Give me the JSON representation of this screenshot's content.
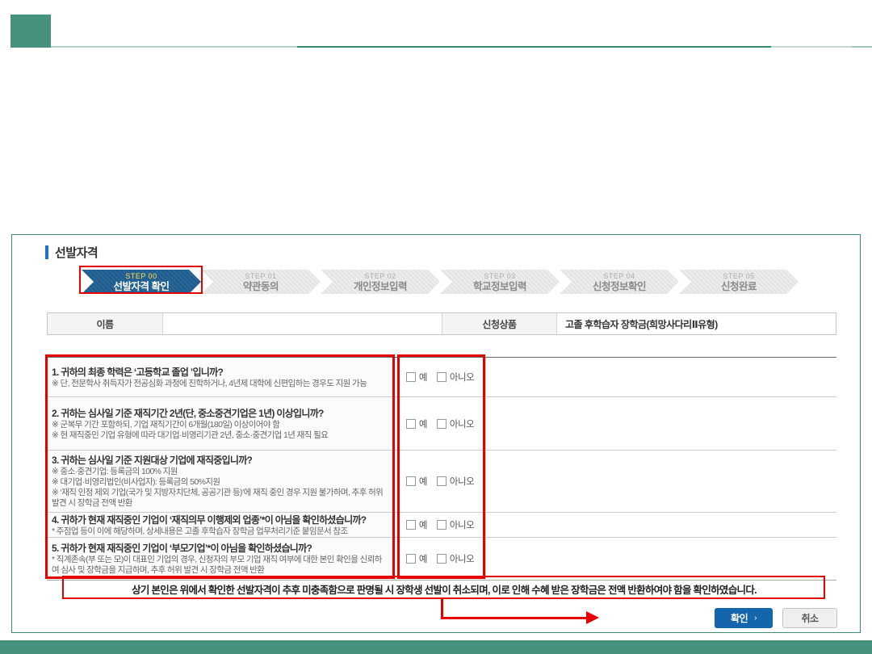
{
  "panel": {
    "title": "선발자격",
    "steps": [
      {
        "step": "STEP 00",
        "label": "선발자격 확인",
        "active": true
      },
      {
        "step": "STEP 01",
        "label": "약관동의",
        "active": false
      },
      {
        "step": "STEP 02",
        "label": "개인정보입력",
        "active": false
      },
      {
        "step": "STEP 03",
        "label": "학교정보입력",
        "active": false
      },
      {
        "step": "STEP 04",
        "label": "신청정보확인",
        "active": false
      },
      {
        "step": "STEP 05",
        "label": "신청완료",
        "active": false
      }
    ],
    "info": {
      "name_label": "이름",
      "name_value": "",
      "product_label": "신청상품",
      "product_value": "고졸 후학습자 장학금(희망사다리Ⅱ유형)"
    },
    "choices": {
      "yes": "예",
      "no": "아니오"
    },
    "questions": [
      {
        "title": "1. 귀하의 최종 학력은 ‘고등학교 졸업 ’입니까?",
        "notes": [
          "※ 단, 전문학사 취득자가 전공심화 과정에 진학하거나, 4년제 대학에 신편입하는 경우도 지원 가능"
        ]
      },
      {
        "title": "2. 귀하는 심사일 기준 재직기간 2년(단, 중소중견기업은 1년) 이상입니까?",
        "notes": [
          "※ 군복무 기간 포함하되, 기업 재직기간이 6개월(180일) 이상이어야 함",
          "※ 현 재직중인 기업 유형에 따라 대기업·비영리기관 2년, 중소·중견기업 1년 재직 필요"
        ]
      },
      {
        "title": "3. 귀하는 심사일 기준 지원대상 기업에 재직중입니까?",
        "notes": [
          "※ 중소·중견기업: 등록금의 100% 지원",
          "※ 대기업·비영리법인(비사업자): 등록금의 50%지원",
          "※ ‘재직 인정 제외 기업(국가 및 지방자치단체, 공공기관 등)’에 재직 중인 경우 지원 불가하며, 추후 허위 발견 시 장학금 전액 반환"
        ]
      },
      {
        "title": "4. 귀하가 현재 재직중인 기업이 ‘재직의무 이행제외 업종’*이 아님을 확인하셨습니까?",
        "notes": [
          "* 주점업 등이 이에 해당하며, 상세내용은 고졸 후학습자 장학금 업무처리기준 붙임문서 참조"
        ]
      },
      {
        "title": "5. 귀하가 현재 재직중인 기업이 ‘부모기업’*이 아님을 확인하셨습니까?",
        "notes": [
          "* 직계존속(부 또는 모)이 대표인 기업의 경우, 신청자의 부모 기업 재직 여부에 대한 본인 확인을 신뢰하여 심사 및 장학금을 지급하며, 추후 허위 발견 시 장학금 전액 반환"
        ]
      }
    ],
    "statement": "상기 본인은 위에서 확인한 선발자격이 추후 미충족함으로 판명될 시 장학생 선발이 취소되며, 이로 인해 수혜 받은 장학금은 전액 반환하여야 함을 확인하였습니다.",
    "buttons": {
      "confirm": "확인",
      "confirm_arrow": "›",
      "cancel": "취소"
    }
  },
  "colors": {
    "brand_teal": "#47917F",
    "active_step_blue": "#1E5C8F",
    "step_number_yellow": "#FFE24A",
    "confirm_button_blue": "#1565AD",
    "annotation_red": "#E60000"
  }
}
